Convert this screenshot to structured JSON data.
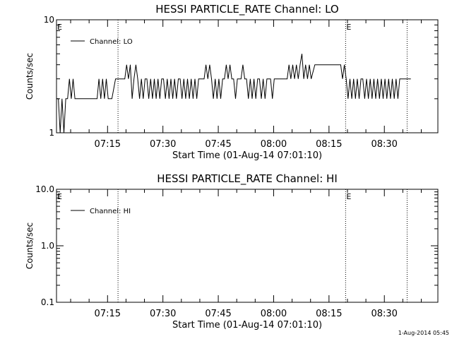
{
  "chart_data": [
    {
      "type": "line",
      "title": "HESSI PARTICLE_RATE Channel: LO",
      "xlabel": "Start Time (01-Aug-14 07:01:10)",
      "ylabel": "Counts/sec",
      "yscale": "log",
      "ylim": [
        1,
        10
      ],
      "y_tick_labels": [
        "10",
        "1"
      ],
      "xlim": [
        "07:01:10",
        "08:44:30"
      ],
      "x_tick_labels": [
        "07:15",
        "07:30",
        "07:45",
        "08:00",
        "08:15",
        "08:30"
      ],
      "vertical_markers": [
        "07:17:50",
        "08:19:30",
        "08:36:10"
      ],
      "marker_labels": [
        {
          "text": "E",
          "x": "07:01:10"
        },
        {
          "text": "E",
          "x": "08:19:30"
        }
      ],
      "legend": {
        "position": "top-left",
        "label": "Channel: LO"
      },
      "series": [
        {
          "name": "Channel: LO",
          "x": [
            "07:01:10",
            "07:01:40",
            "07:02:10",
            "07:02:40",
            "07:03:10",
            "07:03:40",
            "07:04:10",
            "07:04:40",
            "07:05:10",
            "07:05:40",
            "07:06:10",
            "07:06:40",
            "07:07:10",
            "07:07:40",
            "07:08:10",
            "07:10:10",
            "07:12:10",
            "07:12:40",
            "07:13:10",
            "07:13:40",
            "07:14:10",
            "07:14:40",
            "07:15:10",
            "07:16:10",
            "07:17:10",
            "07:18:10",
            "07:19:10",
            "07:19:40",
            "07:20:10",
            "07:20:40",
            "07:21:10",
            "07:21:40",
            "07:22:10",
            "07:22:40",
            "07:23:10",
            "07:23:40",
            "07:24:10",
            "07:24:40",
            "07:25:10",
            "07:25:40",
            "07:26:10",
            "07:26:40",
            "07:27:10",
            "07:27:40",
            "07:28:10",
            "07:28:40",
            "07:29:10",
            "07:29:40",
            "07:30:10",
            "07:30:40",
            "07:31:10",
            "07:31:40",
            "07:32:10",
            "07:32:40",
            "07:33:10",
            "07:33:40",
            "07:34:10",
            "07:34:40",
            "07:35:10",
            "07:35:40",
            "07:36:10",
            "07:36:40",
            "07:37:10",
            "07:37:40",
            "07:38:10",
            "07:38:40",
            "07:39:10",
            "07:39:40",
            "07:40:10",
            "07:40:40",
            "07:41:10",
            "07:41:40",
            "07:42:10",
            "07:42:40",
            "07:43:10",
            "07:43:40",
            "07:44:10",
            "07:44:40",
            "07:45:10",
            "07:45:40",
            "07:46:10",
            "07:46:40",
            "07:47:10",
            "07:47:40",
            "07:48:10",
            "07:48:40",
            "07:49:10",
            "07:49:40",
            "07:50:10",
            "07:50:40",
            "07:51:10",
            "07:51:40",
            "07:52:10",
            "07:52:40",
            "07:53:10",
            "07:53:40",
            "07:54:10",
            "07:54:40",
            "07:55:10",
            "07:55:40",
            "07:56:10",
            "07:56:40",
            "07:57:10",
            "07:57:40",
            "07:58:10",
            "07:58:40",
            "07:59:10",
            "07:59:40",
            "08:00:10",
            "08:01:10",
            "08:02:10",
            "08:02:40",
            "08:03:10",
            "08:03:40",
            "08:04:10",
            "08:04:40",
            "08:05:10",
            "08:05:40",
            "08:06:10",
            "08:06:40",
            "08:07:10",
            "08:07:40",
            "08:08:10",
            "08:08:40",
            "08:09:10",
            "08:09:40",
            "08:10:10",
            "08:11:10",
            "08:12:10",
            "08:13:10",
            "08:14:10",
            "08:15:10",
            "08:16:10",
            "08:17:10",
            "08:18:10",
            "08:18:40",
            "08:19:10",
            "08:19:40",
            "08:20:10",
            "08:20:40",
            "08:21:10",
            "08:21:40",
            "08:22:10",
            "08:22:40",
            "08:23:10",
            "08:23:40",
            "08:24:10",
            "08:24:40",
            "08:25:10",
            "08:25:40",
            "08:26:10",
            "08:26:40",
            "08:27:10",
            "08:27:40",
            "08:28:10",
            "08:28:40",
            "08:29:10",
            "08:29:40",
            "08:30:10",
            "08:30:40",
            "08:31:10",
            "08:31:40",
            "08:32:10",
            "08:32:40",
            "08:33:10",
            "08:33:40",
            "08:34:10",
            "08:35:10",
            "08:36:10",
            "08:37:10"
          ],
          "y": [
            2,
            2,
            1,
            2,
            1,
            2,
            2,
            3,
            2,
            3,
            2,
            2,
            2,
            2,
            2,
            2,
            2,
            3,
            2,
            3,
            2,
            3,
            2,
            2,
            3,
            3,
            3,
            3,
            4,
            3,
            4,
            2,
            3,
            4,
            3,
            2,
            3,
            2,
            3,
            3,
            2,
            3,
            2,
            3,
            2,
            3,
            2,
            3,
            3,
            2,
            3,
            2,
            3,
            2,
            3,
            2,
            3,
            3,
            2,
            3,
            2,
            3,
            2,
            3,
            2,
            3,
            2,
            3,
            3,
            3,
            3,
            4,
            3,
            4,
            3,
            2,
            3,
            2,
            3,
            2,
            3,
            3,
            4,
            3,
            4,
            3,
            3,
            2,
            3,
            3,
            3,
            4,
            3,
            3,
            2,
            3,
            2,
            3,
            2,
            3,
            3,
            2,
            3,
            2,
            3,
            3,
            3,
            2,
            3,
            3,
            3,
            3,
            3,
            3,
            4,
            3,
            4,
            3,
            4,
            3,
            4,
            5,
            3,
            4,
            3,
            4,
            3,
            4,
            4,
            4,
            4,
            4,
            4,
            4,
            4,
            3,
            4,
            3,
            2,
            3,
            2,
            3,
            2,
            3,
            2,
            3,
            3,
            2,
            3,
            2,
            3,
            2,
            3,
            2,
            3,
            2,
            3,
            2,
            3,
            2,
            3,
            2,
            3,
            2,
            3,
            2,
            3,
            3,
            3,
            3
          ]
        }
      ]
    },
    {
      "type": "line",
      "title": "HESSI PARTICLE_RATE Channel: HI",
      "xlabel": "Start Time (01-Aug-14 07:01:10)",
      "ylabel": "Counts/sec",
      "yscale": "log",
      "ylim": [
        0.1,
        10
      ],
      "y_tick_labels": [
        "10.0",
        "1.0",
        "0.1"
      ],
      "xlim": [
        "07:01:10",
        "08:44:30"
      ],
      "x_tick_labels": [
        "07:15",
        "07:30",
        "07:45",
        "08:00",
        "08:15",
        "08:30"
      ],
      "vertical_markers": [
        "07:17:50",
        "08:19:30",
        "08:36:10"
      ],
      "marker_labels": [
        {
          "text": "E",
          "x": "07:01:10"
        },
        {
          "text": "E",
          "x": "08:19:30"
        }
      ],
      "legend": {
        "position": "top-left",
        "label": "Channel: HI"
      },
      "series": [
        {
          "name": "Channel: HI",
          "x": [],
          "y": []
        }
      ]
    }
  ],
  "footer": {
    "timestamp": "1-Aug-2014 05:45"
  }
}
